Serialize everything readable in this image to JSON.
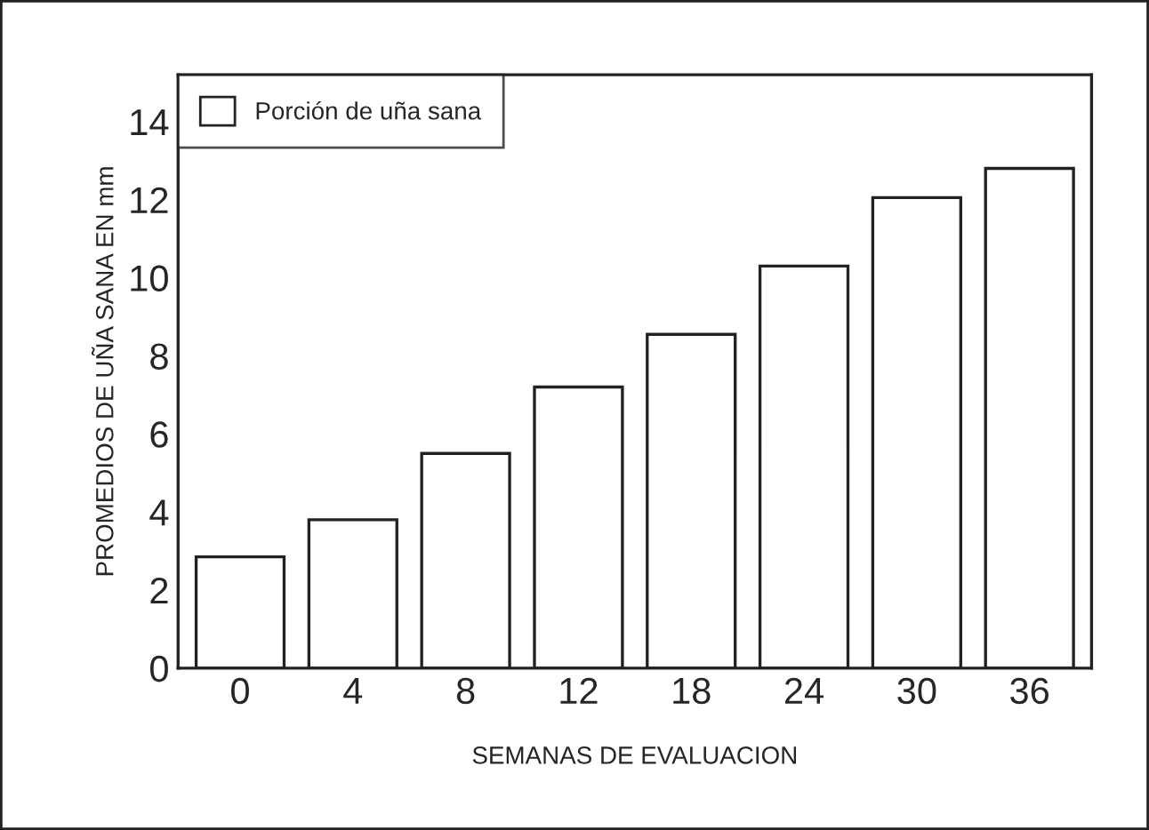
{
  "chart_data": {
    "type": "bar",
    "xlabel": "SEMANAS DE EVALUACION",
    "ylabel": "PROMEDIOS DE UÑA SANA EN mm",
    "categories": [
      "0",
      "4",
      "8",
      "12",
      "18",
      "24",
      "30",
      "36"
    ],
    "series": [
      {
        "name": "Porción de uña sana",
        "color": "#ffffff",
        "values": [
          2.85,
          3.8,
          5.5,
          7.2,
          8.55,
          10.3,
          12.05,
          12.8
        ]
      }
    ],
    "ylim": [
      0,
      15.2
    ],
    "yticks": [
      0,
      2,
      4,
      6,
      8,
      10,
      12,
      14
    ],
    "grid": false,
    "legend": "top left"
  }
}
